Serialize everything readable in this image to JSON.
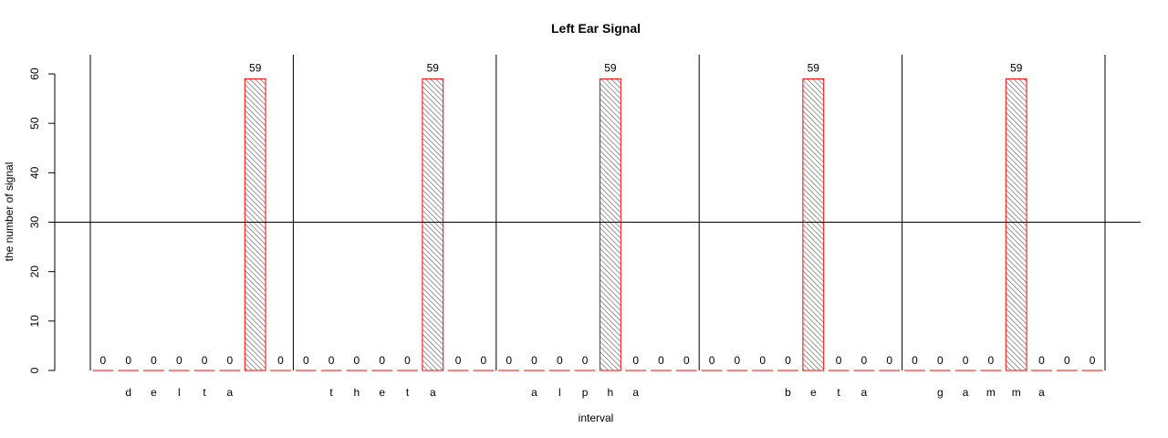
{
  "chart_data": {
    "type": "bar",
    "title": "Left Ear Signal",
    "xlabel": "interval",
    "ylabel": "the number of signal",
    "ylim": [
      0,
      60
    ],
    "yticks": [
      0,
      10,
      20,
      30,
      40,
      50,
      60
    ],
    "reference_line_y": 30,
    "bar_fill": "#cccccc",
    "bar_border": "#ff0000",
    "hatched_bars": true,
    "groups": [
      {
        "name": "delta",
        "values": [
          0,
          0,
          0,
          0,
          0,
          0,
          59,
          0
        ]
      },
      {
        "name": "theta",
        "values": [
          0,
          0,
          0,
          0,
          0,
          59,
          0,
          0
        ]
      },
      {
        "name": "alpha",
        "values": [
          0,
          0,
          0,
          0,
          59,
          0,
          0,
          0
        ]
      },
      {
        "name": "beta",
        "values": [
          0,
          0,
          0,
          0,
          59,
          0,
          0,
          0
        ]
      },
      {
        "name": "gamma",
        "values": [
          0,
          0,
          0,
          0,
          59,
          0,
          0,
          0
        ]
      }
    ],
    "category_labels": [
      "",
      "d",
      "e",
      "l",
      "t",
      "a",
      "",
      "",
      "",
      "t",
      "h",
      "e",
      "t",
      "a",
      "",
      "",
      "",
      "a",
      "l",
      "p",
      "h",
      "a",
      "",
      "",
      "",
      "",
      "",
      "b",
      "e",
      "t",
      "a",
      "",
      "",
      "g",
      "a",
      "m",
      "m",
      "a",
      "",
      ""
    ]
  }
}
